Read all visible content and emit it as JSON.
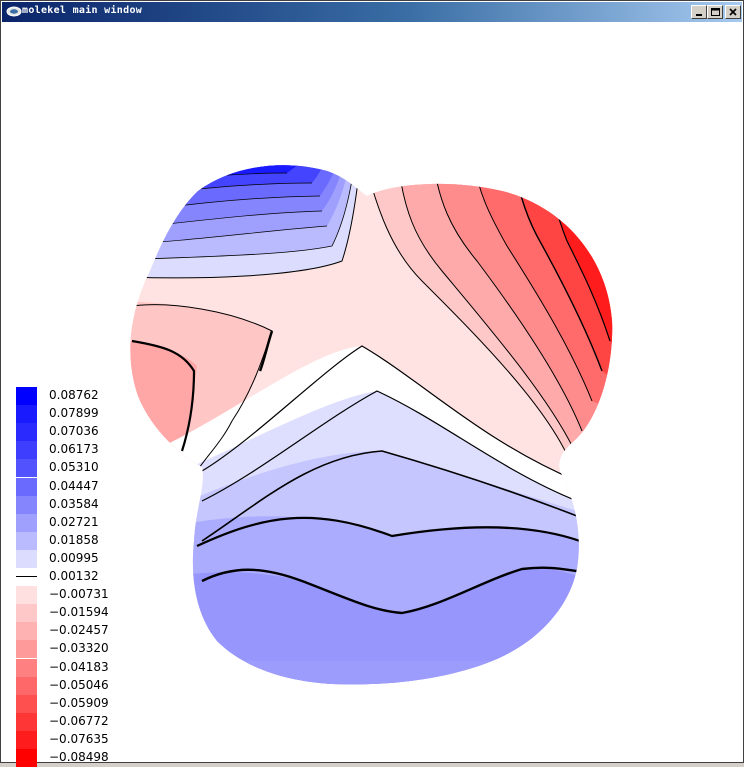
{
  "window": {
    "title": "molekel main window",
    "controls": {
      "minimize": "_",
      "maximize": "□",
      "close": "×"
    }
  },
  "icons": {
    "app": "molekel-app-icon",
    "minimize": "minimize-icon",
    "maximize": "maximize-icon",
    "close": "close-icon"
  },
  "legend": {
    "items": [
      {
        "label": "0.08762",
        "color": "#0000ff"
      },
      {
        "label": "0.07899",
        "color": "#1a1aff"
      },
      {
        "label": "0.07036",
        "color": "#2a2aff"
      },
      {
        "label": "0.06173",
        "color": "#3e3efe"
      },
      {
        "label": "0.05310",
        "color": "#5252fe"
      },
      {
        "label": "0.04447",
        "color": "#6a6afe"
      },
      {
        "label": "0.03584",
        "color": "#8585fe"
      },
      {
        "label": "0.02721",
        "color": "#9f9ffe"
      },
      {
        "label": "0.01858",
        "color": "#babafe"
      },
      {
        "label": "0.00995",
        "color": "#dcdcfe"
      },
      {
        "label": "0.00132",
        "color": "#ffffff"
      },
      {
        "label": "−0.00731",
        "color": "#ffe0e0"
      },
      {
        "label": "−0.01594",
        "color": "#ffc8c8"
      },
      {
        "label": "−0.02457",
        "color": "#ffb2b2"
      },
      {
        "label": "−0.03320",
        "color": "#ff9a9a"
      },
      {
        "label": "−0.04183",
        "color": "#ff8080"
      },
      {
        "label": "−0.05046",
        "color": "#ff6868"
      },
      {
        "label": "−0.05909",
        "color": "#ff5050"
      },
      {
        "label": "−0.06772",
        "color": "#ff3636"
      },
      {
        "label": "−0.07635",
        "color": "#ff1c1c"
      },
      {
        "label": "−0.08498",
        "color": "#ff0000"
      }
    ]
  }
}
